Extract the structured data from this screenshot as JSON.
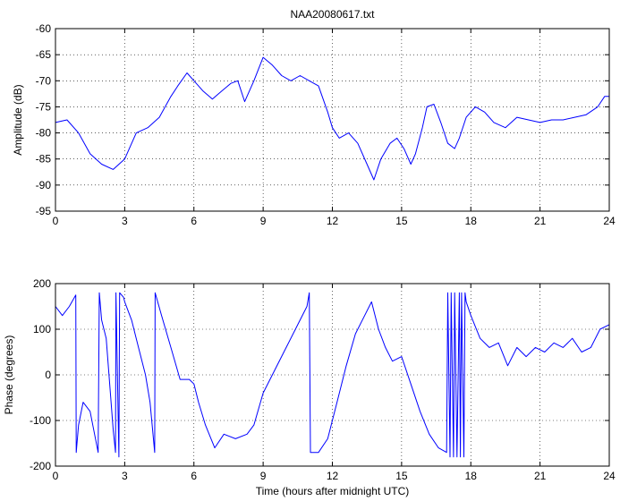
{
  "chart_data": [
    {
      "type": "line",
      "title": "NAA20080617.txt",
      "xlabel": "",
      "ylabel": "Amplitude (dB)",
      "xlim": [
        0,
        24
      ],
      "ylim": [
        -95,
        -60
      ],
      "xticks": [
        0,
        3,
        6,
        9,
        12,
        15,
        18,
        21,
        24
      ],
      "yticks": [
        -95,
        -90,
        -85,
        -80,
        -75,
        -70,
        -65,
        -60
      ],
      "grid": true,
      "line_color": "#0000ff",
      "series": [
        {
          "name": "",
          "x": [
            0,
            0.5,
            1.0,
            1.5,
            2.0,
            2.5,
            3.0,
            3.5,
            4.0,
            4.5,
            5.0,
            5.3,
            5.7,
            6.0,
            6.4,
            6.8,
            7.2,
            7.6,
            7.9,
            8.2,
            8.6,
            9.0,
            9.4,
            9.8,
            10.2,
            10.6,
            11.0,
            11.4,
            11.8,
            12.0,
            12.3,
            12.7,
            13.1,
            13.5,
            13.8,
            14.1,
            14.5,
            14.8,
            15.1,
            15.4,
            15.6,
            15.9,
            16.1,
            16.4,
            16.7,
            17.0,
            17.3,
            17.5,
            17.8,
            18.2,
            18.6,
            19.0,
            19.5,
            20.0,
            20.5,
            21.0,
            21.5,
            22.0,
            22.5,
            23.0,
            23.5,
            23.8,
            24.0
          ],
          "y": [
            -78,
            -77.5,
            -80,
            -84,
            -86,
            -87,
            -85,
            -80,
            -79,
            -77,
            -73,
            -71,
            -68.5,
            -70,
            -72,
            -73.5,
            -72,
            -70.5,
            -70,
            -74,
            -70,
            -65.5,
            -67,
            -69,
            -70,
            -69,
            -70,
            -71,
            -76,
            -79,
            -81,
            -80,
            -82,
            -86,
            -89,
            -85,
            -82,
            -81,
            -83,
            -86,
            -84,
            -79,
            -75,
            -74.5,
            -78,
            -82,
            -83,
            -81,
            -77,
            -75,
            -76,
            -78,
            -79,
            -77,
            -77.5,
            -78,
            -77.5,
            -77.5,
            -77,
            -76.5,
            -75,
            -73,
            -73
          ]
        }
      ]
    },
    {
      "type": "line",
      "title": "",
      "xlabel": "Time (hours after midnight UTC)",
      "ylabel": "Phase (degrees)",
      "xlim": [
        0,
        24
      ],
      "ylim": [
        -200,
        200
      ],
      "xticks": [
        0,
        3,
        6,
        9,
        12,
        15,
        18,
        21,
        24
      ],
      "yticks": [
        -200,
        -100,
        0,
        100,
        200
      ],
      "grid": true,
      "line_color": "#0000ff",
      "series": [
        {
          "name": "",
          "x": [
            0,
            0.3,
            0.6,
            0.88,
            0.9,
            1.0,
            1.2,
            1.5,
            1.85,
            1.9,
            2.0,
            2.2,
            2.5,
            2.6,
            2.62,
            2.75,
            2.78,
            2.95,
            3.0,
            3.3,
            3.6,
            3.9,
            4.1,
            4.3,
            4.32,
            4.6,
            5.0,
            5.4,
            5.8,
            6.0,
            6.2,
            6.5,
            6.9,
            7.3,
            7.8,
            8.3,
            8.6,
            9.0,
            9.5,
            10.0,
            10.5,
            10.9,
            11.0,
            11.05,
            11.4,
            11.8,
            12.2,
            12.6,
            13.0,
            13.4,
            13.7,
            14.0,
            14.3,
            14.6,
            15.0,
            15.4,
            15.8,
            16.2,
            16.6,
            16.95,
            17.0,
            17.1,
            17.15,
            17.25,
            17.3,
            17.4,
            17.5,
            17.55,
            17.6,
            17.7,
            17.75,
            17.8,
            18.0,
            18.4,
            18.8,
            19.2,
            19.6,
            20.0,
            20.4,
            20.8,
            21.2,
            21.6,
            22.0,
            22.4,
            22.8,
            23.2,
            23.6,
            24.0
          ],
          "y": [
            150,
            130,
            150,
            175,
            -170,
            -110,
            -60,
            -80,
            -170,
            180,
            120,
            80,
            -120,
            -170,
            180,
            -180,
            180,
            170,
            160,
            120,
            60,
            0,
            -60,
            -170,
            180,
            130,
            60,
            -10,
            -10,
            -20,
            -60,
            -110,
            -160,
            -130,
            -140,
            -130,
            -110,
            -40,
            10,
            60,
            110,
            150,
            180,
            -170,
            -170,
            -140,
            -60,
            20,
            90,
            130,
            160,
            100,
            60,
            30,
            40,
            -20,
            -80,
            -130,
            -160,
            -170,
            180,
            -180,
            180,
            -180,
            180,
            -180,
            180,
            -180,
            180,
            -180,
            180,
            160,
            130,
            80,
            60,
            70,
            20,
            60,
            40,
            60,
            50,
            70,
            60,
            80,
            50,
            60,
            100,
            110
          ]
        }
      ]
    }
  ]
}
